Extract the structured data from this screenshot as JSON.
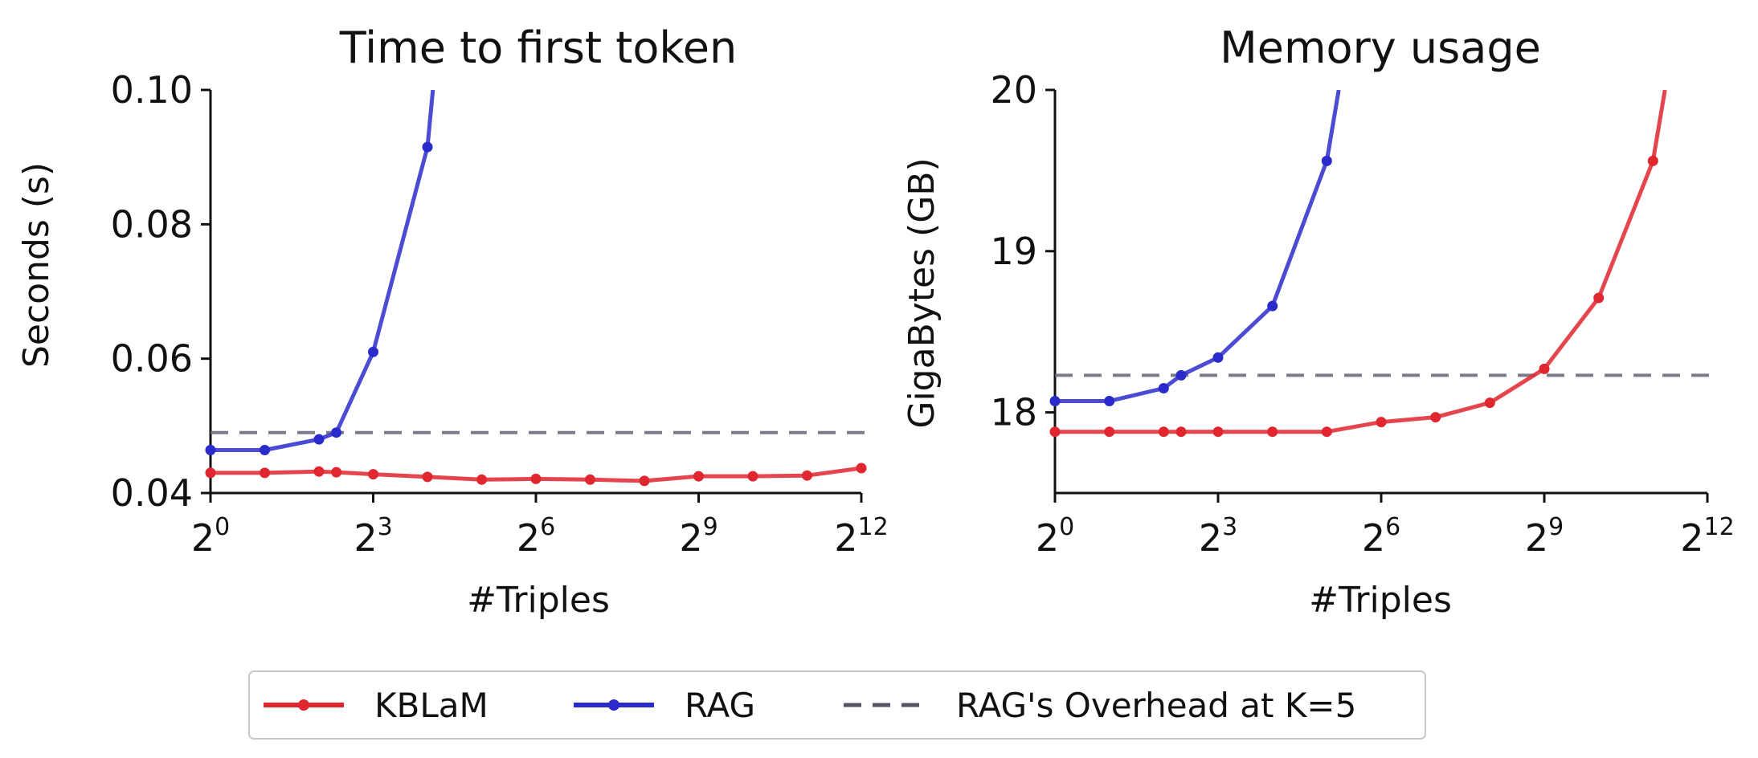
{
  "chart_data": [
    {
      "type": "line",
      "title": "Time to first token",
      "xlabel": "#Triples",
      "ylabel": "Seconds (s)",
      "xscale": "log2",
      "xlim_exponent": [
        0,
        12
      ],
      "ylim": [
        0.04,
        0.1
      ],
      "x_ticks": [
        {
          "base": "2",
          "exp": "0"
        },
        {
          "base": "2",
          "exp": "3"
        },
        {
          "base": "2",
          "exp": "6"
        },
        {
          "base": "2",
          "exp": "9"
        },
        {
          "base": "2",
          "exp": "12"
        }
      ],
      "y_ticks": [
        "0.04",
        "0.06",
        "0.08",
        "0.10"
      ],
      "y_tick_values": [
        0.04,
        0.06,
        0.08,
        0.1
      ],
      "series": [
        {
          "name": "KBLaM",
          "color": "#e0262f",
          "x_exponent": [
            0,
            1,
            2,
            2.32,
            3,
            4,
            5,
            6,
            7,
            8,
            9,
            10,
            11,
            12
          ],
          "values": [
            0.043,
            0.043,
            0.0432,
            0.0431,
            0.0428,
            0.0424,
            0.042,
            0.0421,
            0.042,
            0.0418,
            0.0425,
            0.0425,
            0.0426,
            0.0437
          ]
        },
        {
          "name": "RAG",
          "color": "#2b2bcc",
          "x_exponent": [
            0,
            1,
            2,
            2.32,
            3,
            4,
            4.1
          ],
          "values": [
            0.0464,
            0.0464,
            0.048,
            0.049,
            0.061,
            0.0915,
            0.1
          ]
        }
      ],
      "hline": {
        "name": "RAG's Overhead at K=5",
        "value": 0.049,
        "color": "#666677"
      }
    },
    {
      "type": "line",
      "title": "Memory usage",
      "xlabel": "#Triples",
      "ylabel": "GigaBytes (GB)",
      "xscale": "log2",
      "xlim_exponent": [
        0,
        12
      ],
      "ylim": [
        17.5,
        20
      ],
      "x_ticks": [
        {
          "base": "2",
          "exp": "0"
        },
        {
          "base": "2",
          "exp": "3"
        },
        {
          "base": "2",
          "exp": "6"
        },
        {
          "base": "2",
          "exp": "9"
        },
        {
          "base": "2",
          "exp": "12"
        }
      ],
      "y_ticks": [
        "18",
        "19",
        "20"
      ],
      "y_tick_values": [
        18,
        19,
        20
      ],
      "series": [
        {
          "name": "KBLaM",
          "color": "#e0262f",
          "x_exponent": [
            0,
            1,
            2,
            2.32,
            3,
            4,
            5,
            6,
            7,
            8,
            9,
            10,
            11,
            11.22
          ],
          "values": [
            17.88,
            17.88,
            17.88,
            17.88,
            17.88,
            17.88,
            17.88,
            17.94,
            17.97,
            18.06,
            18.27,
            18.71,
            19.56,
            20.0
          ]
        },
        {
          "name": "RAG",
          "color": "#2b2bcc",
          "x_exponent": [
            0,
            1,
            2,
            2.32,
            3,
            4,
            5,
            5.22
          ],
          "values": [
            18.07,
            18.07,
            18.15,
            18.23,
            18.34,
            18.66,
            19.56,
            20.0
          ]
        }
      ],
      "hline": {
        "name": "RAG's Overhead at K=5",
        "value": 18.23,
        "color": "#666677"
      }
    }
  ],
  "legend": {
    "placement": "bottom-center",
    "items": [
      {
        "label": "KBLaM",
        "style": "line-marker",
        "color": "#e0262f"
      },
      {
        "label": "RAG",
        "style": "line-marker",
        "color": "#2b2bcc"
      },
      {
        "label": "RAG's Overhead at K=5",
        "style": "dashed",
        "color": "#555566"
      }
    ]
  }
}
